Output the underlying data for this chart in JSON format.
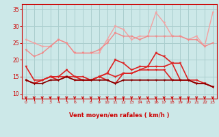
{
  "x": [
    0,
    1,
    2,
    3,
    4,
    5,
    6,
    7,
    8,
    9,
    10,
    11,
    12,
    13,
    14,
    15,
    16,
    17,
    18,
    19,
    20,
    21,
    22,
    23
  ],
  "lines": [
    {
      "y": [
        26,
        25,
        24,
        24,
        26,
        25,
        22,
        22,
        22,
        22,
        26,
        30,
        29,
        26,
        27,
        27,
        34,
        31,
        27,
        27,
        26,
        27,
        24,
        34
      ],
      "color": "#f4a0a0",
      "lw": 1.0,
      "marker": "v",
      "ms": 2.5
    },
    {
      "y": [
        23,
        21,
        22,
        24,
        26,
        25,
        22,
        22,
        22,
        23,
        25,
        28,
        27,
        27,
        26,
        27,
        27,
        27,
        27,
        27,
        26,
        26,
        24,
        25
      ],
      "color": "#f08888",
      "lw": 1.0,
      "marker": "v",
      "ms": 2.5
    },
    {
      "y": [
        18,
        14,
        14,
        15,
        15,
        17,
        15,
        14,
        14,
        15,
        16,
        20,
        19,
        17,
        18,
        18,
        22,
        21,
        19,
        19,
        14,
        14,
        13,
        12
      ],
      "color": "#dd2222",
      "lw": 1.2,
      "marker": "v",
      "ms": 2.5
    },
    {
      "y": [
        14,
        13,
        14,
        15,
        15,
        15,
        14,
        14,
        14,
        15,
        16,
        15,
        16,
        16,
        17,
        18,
        18,
        18,
        19,
        14,
        14,
        13,
        13,
        12
      ],
      "color": "#dd2222",
      "lw": 1.2,
      "marker": "v",
      "ms": 2.5
    },
    {
      "y": [
        14,
        13,
        14,
        15,
        14,
        15,
        15,
        15,
        14,
        15,
        14,
        13,
        16,
        16,
        17,
        17,
        17,
        17,
        14,
        14,
        14,
        13,
        13,
        12
      ],
      "color": "#dd2222",
      "lw": 1.2,
      "marker": "v",
      "ms": 2.5
    },
    {
      "y": [
        14,
        13,
        13,
        14,
        14,
        15,
        14,
        14,
        14,
        14,
        14,
        13,
        14,
        14,
        14,
        14,
        14,
        14,
        14,
        14,
        14,
        13,
        13,
        12
      ],
      "color": "#880000",
      "lw": 1.2,
      "marker": "v",
      "ms": 2.5
    }
  ],
  "xlim": [
    -0.5,
    23.5
  ],
  "ylim": [
    8.5,
    36.5
  ],
  "yticks": [
    10,
    15,
    20,
    25,
    30,
    35
  ],
  "xticks": [
    0,
    1,
    2,
    3,
    4,
    5,
    6,
    7,
    8,
    9,
    10,
    11,
    12,
    13,
    14,
    15,
    16,
    17,
    18,
    19,
    20,
    21,
    22,
    23
  ],
  "xlabel": "Vent moyen/en rafales ( km/h )",
  "bg_color": "#cce8e8",
  "grid_color": "#aacece",
  "axis_color": "#cc0000",
  "label_color": "#cc0000",
  "tick_color": "#cc0000",
  "figsize": [
    3.2,
    2.0
  ],
  "dpi": 100
}
